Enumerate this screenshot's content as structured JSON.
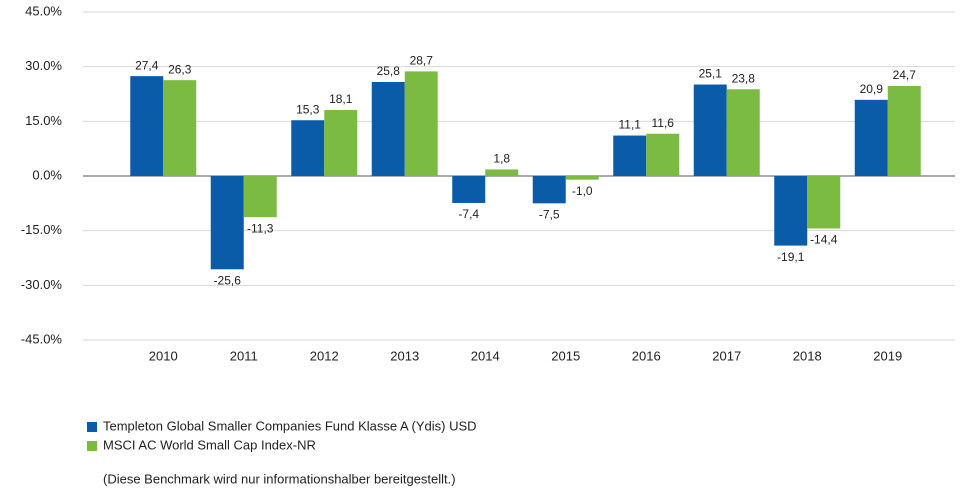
{
  "chart_data": {
    "type": "bar",
    "categories": [
      "2010",
      "2011",
      "2012",
      "2013",
      "2014",
      "2015",
      "2016",
      "2017",
      "2018",
      "2019"
    ],
    "series": [
      {
        "name": "Templeton Global Smaller Companies Fund Klasse A (Ydis) USD",
        "color": "#0b5ca8",
        "values": [
          27.4,
          -25.6,
          15.3,
          25.8,
          -7.4,
          -7.5,
          11.1,
          25.1,
          -19.1,
          20.9
        ],
        "value_labels": [
          "27,4",
          "-25,6",
          "15,3",
          "25,8",
          "-7,4",
          "-7,5",
          "11,1",
          "25,1",
          "-19,1",
          "20,9"
        ]
      },
      {
        "name": "MSCI AC World Small Cap Index-NR",
        "color": "#7cbb42",
        "values": [
          26.3,
          -11.3,
          18.1,
          28.7,
          1.8,
          -1.0,
          11.6,
          23.8,
          -14.4,
          24.7
        ],
        "value_labels": [
          "26,3",
          "-11,3",
          "18,1",
          "28,7",
          "1,8",
          "-1,0",
          "11,6",
          "23,8",
          "-14,4",
          "24,7"
        ]
      }
    ],
    "ylim": [
      -45,
      45
    ],
    "yticks": [
      {
        "value": 45,
        "label": "45.0%"
      },
      {
        "value": 30,
        "label": "30.0%"
      },
      {
        "value": 15,
        "label": "15.0%"
      },
      {
        "value": 0,
        "label": "0.0%"
      },
      {
        "value": -15,
        "label": "-15.0%"
      },
      {
        "value": -30,
        "label": "-30.0%"
      },
      {
        "value": -45,
        "label": "-45.0%"
      }
    ],
    "grid": true,
    "note": "(Diese Benchmark wird nur informationshalber bereitgestellt.)"
  }
}
